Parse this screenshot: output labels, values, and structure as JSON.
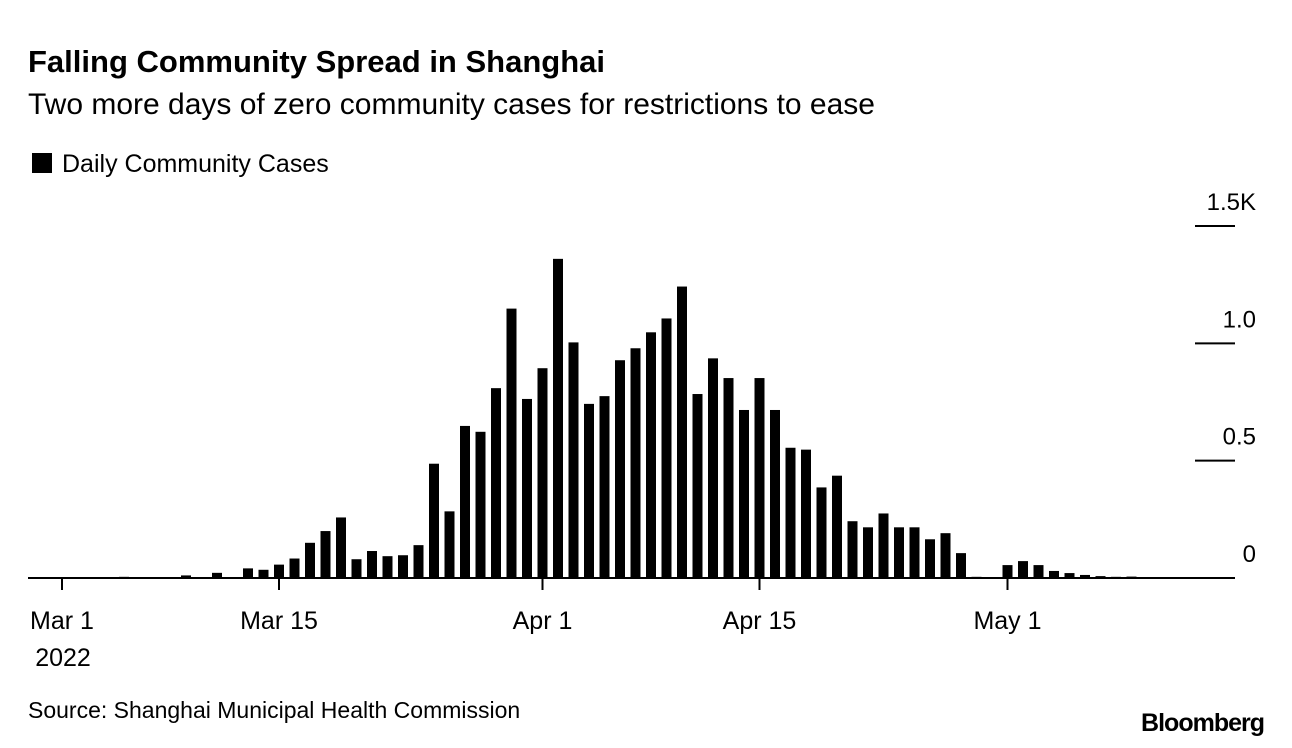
{
  "chart_data": {
    "type": "bar",
    "title": "Falling Community Spread in Shanghai",
    "subtitle": "Two more days of zero community cases for restrictions to ease",
    "source": "Source: Shanghai Municipal Health Commission",
    "brand": "Bloomberg",
    "year_label": "2022",
    "series": [
      {
        "name": "Daily Community Cases",
        "color": "#000000",
        "values": [
          2,
          2,
          3,
          2,
          5,
          3,
          3,
          3,
          11,
          4,
          22,
          2,
          41,
          35,
          57,
          83,
          150,
          200,
          258,
          80,
          115,
          93,
          97,
          140,
          487,
          284,
          648,
          623,
          809,
          1148,
          763,
          894,
          1360,
          1004,
          742,
          775,
          928,
          979,
          1047,
          1106,
          1242,
          784,
          936,
          852,
          716,
          852,
          716,
          555,
          547,
          386,
          436,
          242,
          216,
          275,
          216,
          216,
          165,
          191,
          106,
          5,
          2,
          55,
          72,
          55,
          30,
          21,
          13,
          8,
          5,
          6,
          2
        ]
      }
    ],
    "x": [
      "2022-03-01",
      "2022-03-02",
      "2022-03-03",
      "2022-03-04",
      "2022-03-05",
      "2022-03-06",
      "2022-03-07",
      "2022-03-08",
      "2022-03-09",
      "2022-03-10",
      "2022-03-11",
      "2022-03-12",
      "2022-03-13",
      "2022-03-14",
      "2022-03-15",
      "2022-03-16",
      "2022-03-17",
      "2022-03-18",
      "2022-03-19",
      "2022-03-20",
      "2022-03-21",
      "2022-03-22",
      "2022-03-23",
      "2022-03-24",
      "2022-03-25",
      "2022-03-26",
      "2022-03-27",
      "2022-03-28",
      "2022-03-29",
      "2022-03-30",
      "2022-03-31",
      "2022-04-01",
      "2022-04-02",
      "2022-04-03",
      "2022-04-04",
      "2022-04-05",
      "2022-04-06",
      "2022-04-07",
      "2022-04-08",
      "2022-04-09",
      "2022-04-10",
      "2022-04-11",
      "2022-04-12",
      "2022-04-13",
      "2022-04-14",
      "2022-04-15",
      "2022-04-16",
      "2022-04-17",
      "2022-04-18",
      "2022-04-19",
      "2022-04-20",
      "2022-04-21",
      "2022-04-22",
      "2022-04-23",
      "2022-04-24",
      "2022-04-25",
      "2022-04-26",
      "2022-04-27",
      "2022-04-28",
      "2022-04-29",
      "2022-04-30",
      "2022-05-01",
      "2022-05-02",
      "2022-05-03",
      "2022-05-04",
      "2022-05-05",
      "2022-05-06",
      "2022-05-07",
      "2022-05-08",
      "2022-05-09",
      "2022-05-10"
    ],
    "xticks": [
      {
        "value": "2022-03-01",
        "label": "Mar 1"
      },
      {
        "value": "2022-03-15",
        "label": "Mar 15"
      },
      {
        "value": "2022-04-01",
        "label": "Apr 1"
      },
      {
        "value": "2022-04-15",
        "label": "Apr 15"
      },
      {
        "value": "2022-05-01",
        "label": "May 1"
      }
    ],
    "ylim": [
      0,
      1500
    ],
    "yticks": [
      0,
      {
        "value": 500,
        "label": "0.5"
      },
      {
        "value": 1000,
        "label": "1.0"
      },
      {
        "value": 1500,
        "label": "1.5K"
      }
    ]
  }
}
